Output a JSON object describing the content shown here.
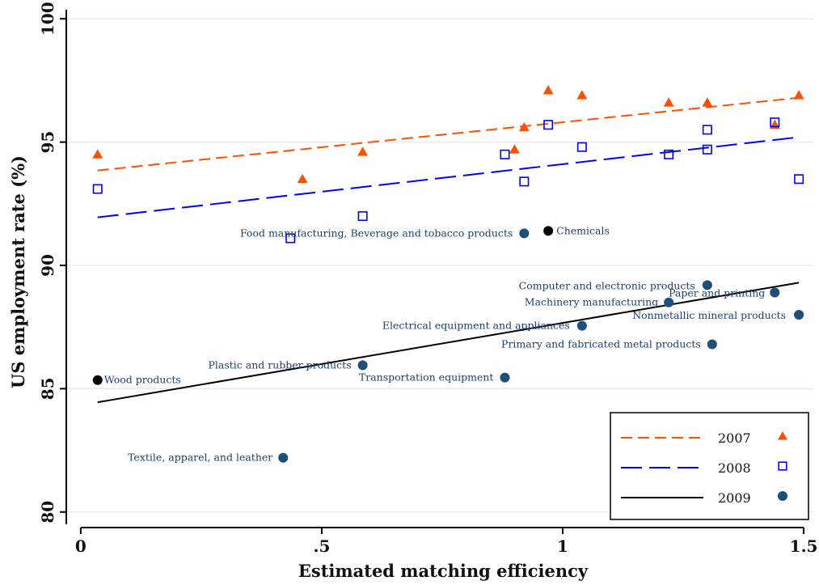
{
  "chart_data": {
    "type": "scatter",
    "title": "",
    "xlabel": "Estimated matching efficiency",
    "ylabel": "US employment rate (%)",
    "xlim": [
      -0.03,
      1.52
    ],
    "ylim": [
      79.5,
      100.5
    ],
    "x_ticks": [
      0,
      0.5,
      1,
      1.5
    ],
    "x_tick_labels": [
      "0",
      ".5",
      "1",
      "1.5"
    ],
    "y_ticks": [
      80,
      85,
      90,
      95,
      100
    ],
    "y_tick_labels": [
      "80",
      "85",
      "90",
      "95",
      "100"
    ],
    "grid": "horizontal",
    "legend_position": "bottom-right",
    "series": [
      {
        "name": "2007",
        "marker": "triangle",
        "color": "#ff4f00",
        "line_style": "short-dash",
        "fit": {
          "x": [
            0.035,
            1.49
          ],
          "y": [
            93.85,
            96.8
          ]
        },
        "points": [
          {
            "x": 0.035,
            "y": 94.5
          },
          {
            "x": 0.46,
            "y": 93.5
          },
          {
            "x": 0.585,
            "y": 94.6
          },
          {
            "x": 0.9,
            "y": 94.7
          },
          {
            "x": 0.92,
            "y": 95.6
          },
          {
            "x": 0.97,
            "y": 97.1
          },
          {
            "x": 1.04,
            "y": 96.9
          },
          {
            "x": 1.22,
            "y": 96.6
          },
          {
            "x": 1.3,
            "y": 96.6
          },
          {
            "x": 1.44,
            "y": 95.7
          },
          {
            "x": 1.49,
            "y": 96.9
          }
        ]
      },
      {
        "name": "2008",
        "marker": "hollow-square",
        "color": "#0000ff",
        "line_style": "long-dash",
        "fit": {
          "x": [
            0.035,
            1.49
          ],
          "y": [
            91.95,
            95.2
          ]
        },
        "points": [
          {
            "x": 0.035,
            "y": 93.1
          },
          {
            "x": 0.435,
            "y": 91.1
          },
          {
            "x": 0.585,
            "y": 92.0
          },
          {
            "x": 0.88,
            "y": 94.5
          },
          {
            "x": 0.92,
            "y": 93.4
          },
          {
            "x": 0.97,
            "y": 95.7
          },
          {
            "x": 1.04,
            "y": 94.8
          },
          {
            "x": 1.22,
            "y": 94.5
          },
          {
            "x": 1.3,
            "y": 95.5
          },
          {
            "x": 1.3,
            "y": 94.7
          },
          {
            "x": 1.44,
            "y": 95.8
          },
          {
            "x": 1.49,
            "y": 93.5
          }
        ]
      },
      {
        "name": "2009",
        "marker": "circle",
        "color": "#1f4e79",
        "line_style": "solid",
        "line_color": "#000000",
        "fit": {
          "x": [
            0.035,
            1.49
          ],
          "y": [
            84.45,
            89.3
          ]
        },
        "points": [
          {
            "x": 0.035,
            "y": 85.35,
            "label": "Wood products",
            "color": "#000000"
          },
          {
            "x": 0.42,
            "y": 82.2,
            "label": "Textile, apparel, and leather"
          },
          {
            "x": 0.585,
            "y": 85.95,
            "label": "Plastic and rubber products"
          },
          {
            "x": 0.88,
            "y": 85.45,
            "label": "Transportation equipment"
          },
          {
            "x": 0.92,
            "y": 91.3,
            "label": "Food manufacturing, Beverage and tobacco products"
          },
          {
            "x": 0.97,
            "y": 91.4,
            "label": "Chemicals",
            "color": "#000000"
          },
          {
            "x": 1.04,
            "y": 87.55,
            "label": "Electrical equipment and appliances"
          },
          {
            "x": 1.22,
            "y": 88.5,
            "label": "Machinery manufacturing"
          },
          {
            "x": 1.3,
            "y": 89.2,
            "label": "Computer and electronic products"
          },
          {
            "x": 1.31,
            "y": 86.8,
            "label": "Primary and fabricated metal products"
          },
          {
            "x": 1.44,
            "y": 88.9,
            "label": "Paper and printing"
          },
          {
            "x": 1.49,
            "y": 88.0,
            "label": "Nonmetallic mineral products"
          }
        ]
      }
    ]
  }
}
